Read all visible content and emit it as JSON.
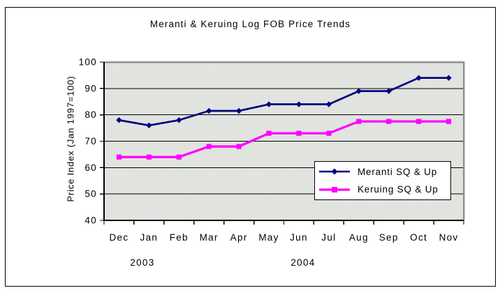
{
  "chart_data": {
    "type": "line",
    "title": "Meranti & Keruing Log FOB Price Trends",
    "ylabel": "Price Index (Jan 1997=100)",
    "xlabel": "",
    "categories": [
      "Dec",
      "Jan",
      "Feb",
      "Mar",
      "Apr",
      "May",
      "Jun",
      "Jul",
      "Aug",
      "Sep",
      "Oct",
      "Nov"
    ],
    "year_labels": [
      "2003",
      "2004"
    ],
    "ylim": [
      40,
      100
    ],
    "yticks": [
      40,
      50,
      60,
      70,
      80,
      90,
      100
    ],
    "grid": true,
    "legend_position": "inside-bottom-right",
    "series": [
      {
        "name": "Meranti SQ & Up",
        "color": "#000080",
        "marker": "diamond",
        "values": [
          78,
          76,
          78,
          81.5,
          81.5,
          84,
          84,
          84,
          89,
          89,
          94,
          94
        ]
      },
      {
        "name": "Keruing SQ & Up",
        "color": "#ff00ff",
        "marker": "square",
        "values": [
          64,
          64,
          64,
          68,
          68,
          73,
          73,
          73,
          77.5,
          77.5,
          77.5,
          77.5
        ]
      }
    ]
  },
  "colors": {
    "plot_bg_light": "#f2f3ef",
    "plot_bg_dark": "#cfd4cf",
    "plot_border_gray": "#909090",
    "grid_line": "#000000",
    "axis_line": "#000000",
    "frame_border": "#000000"
  }
}
